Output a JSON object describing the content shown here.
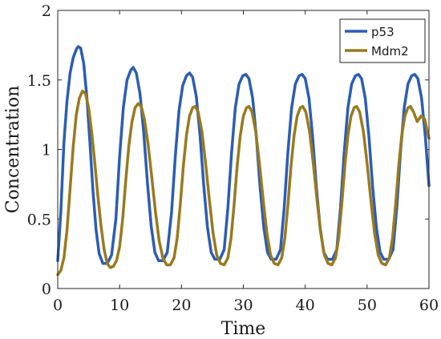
{
  "chart_data": {
    "type": "line",
    "xlabel": "Time",
    "ylabel": "Concentration",
    "xlim": [
      0,
      60
    ],
    "ylim": [
      0,
      2
    ],
    "xticks": [
      0,
      10,
      20,
      30,
      40,
      50,
      60
    ],
    "yticks": [
      0,
      0.5,
      1,
      1.5,
      2
    ],
    "ytick_labels": [
      "0",
      "0.5",
      "1",
      "1.5",
      "2"
    ],
    "grid": false,
    "legend_position": "top-right",
    "series": [
      {
        "name": "p53",
        "color": "#2c5db3",
        "points": [
          [
            0,
            0.2
          ],
          [
            0.5,
            0.55
          ],
          [
            1,
            1.05
          ],
          [
            1.5,
            1.35
          ],
          [
            2,
            1.55
          ],
          [
            2.5,
            1.66
          ],
          [
            3,
            1.72
          ],
          [
            3.3,
            1.74
          ],
          [
            3.7,
            1.73
          ],
          [
            4.2,
            1.62
          ],
          [
            4.7,
            1.38
          ],
          [
            5.2,
            1.05
          ],
          [
            5.7,
            0.7
          ],
          [
            6.2,
            0.42
          ],
          [
            6.7,
            0.25
          ],
          [
            7.3,
            0.18
          ],
          [
            8,
            0.18
          ],
          [
            8.7,
            0.24
          ],
          [
            9.4,
            0.5
          ],
          [
            10,
            0.95
          ],
          [
            10.6,
            1.3
          ],
          [
            11.2,
            1.5
          ],
          [
            11.8,
            1.57
          ],
          [
            12.2,
            1.59
          ],
          [
            12.7,
            1.55
          ],
          [
            13.3,
            1.4
          ],
          [
            13.9,
            1.12
          ],
          [
            14.5,
            0.76
          ],
          [
            15.1,
            0.45
          ],
          [
            15.7,
            0.26
          ],
          [
            16.3,
            0.2
          ],
          [
            17,
            0.2
          ],
          [
            17.7,
            0.26
          ],
          [
            18.4,
            0.55
          ],
          [
            19,
            0.95
          ],
          [
            19.6,
            1.28
          ],
          [
            20.2,
            1.46
          ],
          [
            20.8,
            1.53
          ],
          [
            21.3,
            1.55
          ],
          [
            21.8,
            1.52
          ],
          [
            22.4,
            1.38
          ],
          [
            23,
            1.1
          ],
          [
            23.6,
            0.74
          ],
          [
            24.2,
            0.44
          ],
          [
            24.8,
            0.26
          ],
          [
            25.4,
            0.21
          ],
          [
            26.2,
            0.21
          ],
          [
            26.9,
            0.28
          ],
          [
            27.5,
            0.58
          ],
          [
            28.1,
            0.98
          ],
          [
            28.7,
            1.3
          ],
          [
            29.3,
            1.47
          ],
          [
            29.9,
            1.53
          ],
          [
            30.4,
            1.54
          ],
          [
            30.9,
            1.51
          ],
          [
            31.5,
            1.37
          ],
          [
            32.1,
            1.09
          ],
          [
            32.7,
            0.73
          ],
          [
            33.3,
            0.44
          ],
          [
            33.9,
            0.26
          ],
          [
            34.5,
            0.21
          ],
          [
            35.3,
            0.21
          ],
          [
            36,
            0.28
          ],
          [
            36.6,
            0.58
          ],
          [
            37.2,
            0.98
          ],
          [
            37.8,
            1.3
          ],
          [
            38.4,
            1.47
          ],
          [
            39,
            1.53
          ],
          [
            39.5,
            1.54
          ],
          [
            40,
            1.51
          ],
          [
            40.6,
            1.37
          ],
          [
            41.2,
            1.09
          ],
          [
            41.8,
            0.73
          ],
          [
            42.4,
            0.44
          ],
          [
            43,
            0.26
          ],
          [
            43.6,
            0.21
          ],
          [
            44.4,
            0.21
          ],
          [
            45.1,
            0.28
          ],
          [
            45.7,
            0.58
          ],
          [
            46.3,
            0.98
          ],
          [
            46.9,
            1.3
          ],
          [
            47.5,
            1.47
          ],
          [
            48.1,
            1.53
          ],
          [
            48.6,
            1.54
          ],
          [
            49.1,
            1.51
          ],
          [
            49.7,
            1.37
          ],
          [
            50.3,
            1.09
          ],
          [
            50.9,
            0.73
          ],
          [
            51.5,
            0.44
          ],
          [
            52.1,
            0.26
          ],
          [
            52.7,
            0.21
          ],
          [
            53.5,
            0.21
          ],
          [
            54.2,
            0.28
          ],
          [
            54.8,
            0.58
          ],
          [
            55.4,
            0.98
          ],
          [
            56,
            1.3
          ],
          [
            56.6,
            1.47
          ],
          [
            57.2,
            1.53
          ],
          [
            57.7,
            1.54
          ],
          [
            58.2,
            1.51
          ],
          [
            58.8,
            1.37
          ],
          [
            59.4,
            1.1
          ],
          [
            60,
            0.74
          ]
        ]
      },
      {
        "name": "Mdm2",
        "color": "#9a7a1f",
        "points": [
          [
            0,
            0.1
          ],
          [
            0.5,
            0.13
          ],
          [
            1,
            0.22
          ],
          [
            1.5,
            0.42
          ],
          [
            2,
            0.72
          ],
          [
            2.5,
            1.02
          ],
          [
            3,
            1.25
          ],
          [
            3.5,
            1.37
          ],
          [
            4,
            1.42
          ],
          [
            4.5,
            1.4
          ],
          [
            5,
            1.3
          ],
          [
            5.5,
            1.12
          ],
          [
            6,
            0.9
          ],
          [
            6.5,
            0.66
          ],
          [
            7,
            0.45
          ],
          [
            7.5,
            0.28
          ],
          [
            8,
            0.18
          ],
          [
            8.5,
            0.15
          ],
          [
            9,
            0.16
          ],
          [
            9.5,
            0.2
          ],
          [
            10,
            0.3
          ],
          [
            10.5,
            0.5
          ],
          [
            11,
            0.78
          ],
          [
            11.5,
            1.03
          ],
          [
            12,
            1.2
          ],
          [
            12.5,
            1.3
          ],
          [
            13,
            1.33
          ],
          [
            13.5,
            1.31
          ],
          [
            14,
            1.22
          ],
          [
            14.6,
            1.04
          ],
          [
            15.2,
            0.8
          ],
          [
            15.8,
            0.55
          ],
          [
            16.4,
            0.34
          ],
          [
            17,
            0.22
          ],
          [
            17.6,
            0.17
          ],
          [
            18.2,
            0.17
          ],
          [
            18.8,
            0.22
          ],
          [
            19.3,
            0.36
          ],
          [
            19.8,
            0.6
          ],
          [
            20.3,
            0.88
          ],
          [
            20.8,
            1.1
          ],
          [
            21.3,
            1.24
          ],
          [
            21.8,
            1.3
          ],
          [
            22.2,
            1.31
          ],
          [
            22.7,
            1.27
          ],
          [
            23.3,
            1.13
          ],
          [
            23.9,
            0.9
          ],
          [
            24.5,
            0.64
          ],
          [
            25.1,
            0.4
          ],
          [
            25.7,
            0.24
          ],
          [
            26.3,
            0.18
          ],
          [
            26.9,
            0.17
          ],
          [
            27.5,
            0.22
          ],
          [
            28,
            0.36
          ],
          [
            28.5,
            0.6
          ],
          [
            29,
            0.88
          ],
          [
            29.5,
            1.1
          ],
          [
            30,
            1.24
          ],
          [
            30.5,
            1.3
          ],
          [
            30.9,
            1.31
          ],
          [
            31.4,
            1.27
          ],
          [
            32,
            1.13
          ],
          [
            32.6,
            0.9
          ],
          [
            33.2,
            0.64
          ],
          [
            33.8,
            0.4
          ],
          [
            34.4,
            0.24
          ],
          [
            35,
            0.18
          ],
          [
            35.6,
            0.17
          ],
          [
            36.2,
            0.22
          ],
          [
            36.7,
            0.36
          ],
          [
            37.2,
            0.6
          ],
          [
            37.7,
            0.88
          ],
          [
            38.2,
            1.1
          ],
          [
            38.7,
            1.24
          ],
          [
            39.2,
            1.3
          ],
          [
            39.6,
            1.31
          ],
          [
            40.1,
            1.27
          ],
          [
            40.7,
            1.13
          ],
          [
            41.3,
            0.9
          ],
          [
            41.9,
            0.64
          ],
          [
            42.5,
            0.4
          ],
          [
            43.1,
            0.24
          ],
          [
            43.7,
            0.18
          ],
          [
            44.3,
            0.17
          ],
          [
            44.9,
            0.22
          ],
          [
            45.4,
            0.36
          ],
          [
            45.9,
            0.6
          ],
          [
            46.4,
            0.88
          ],
          [
            46.9,
            1.1
          ],
          [
            47.4,
            1.24
          ],
          [
            47.9,
            1.3
          ],
          [
            48.3,
            1.31
          ],
          [
            48.8,
            1.27
          ],
          [
            49.4,
            1.13
          ],
          [
            50,
            0.9
          ],
          [
            50.6,
            0.64
          ],
          [
            51.2,
            0.4
          ],
          [
            51.8,
            0.24
          ],
          [
            52.4,
            0.18
          ],
          [
            53,
            0.17
          ],
          [
            53.6,
            0.22
          ],
          [
            54.1,
            0.36
          ],
          [
            54.6,
            0.6
          ],
          [
            55.1,
            0.88
          ],
          [
            55.6,
            1.1
          ],
          [
            56.1,
            1.24
          ],
          [
            56.6,
            1.3
          ],
          [
            57,
            1.31
          ],
          [
            57.5,
            1.27
          ],
          [
            58.1,
            1.2
          ],
          [
            58.7,
            1.24
          ],
          [
            59.3,
            1.22
          ],
          [
            60,
            1.08
          ]
        ]
      }
    ]
  }
}
